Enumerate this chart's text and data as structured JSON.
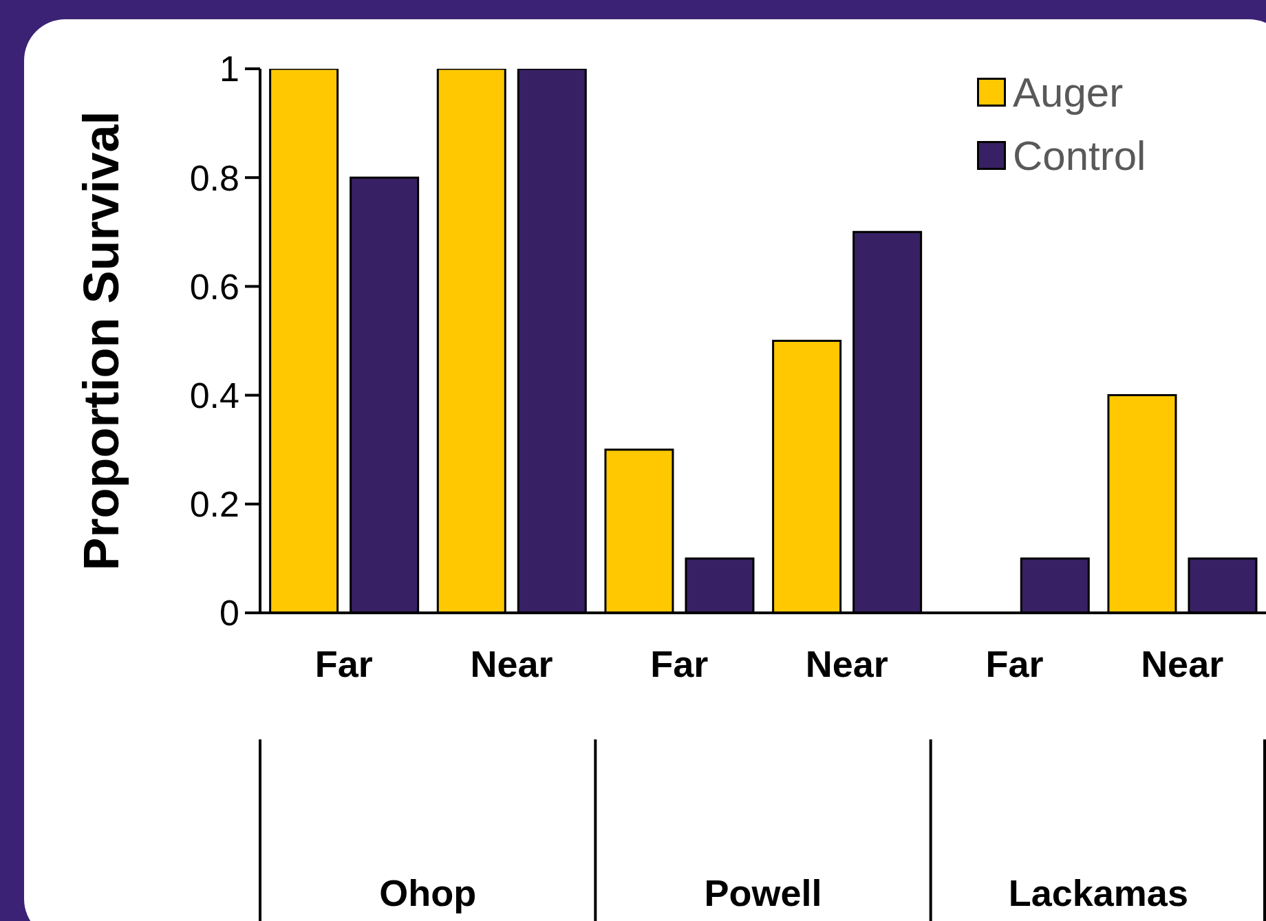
{
  "chart_data": {
    "type": "bar",
    "ylabel": "Proportion Survival",
    "categories": [
      "Far",
      "Near",
      "Far",
      "Near",
      "Far",
      "Near"
    ],
    "series": [
      {
        "name": "Auger",
        "color": "#ffc800",
        "values": [
          1,
          1,
          0.3,
          0.5,
          0,
          0.4
        ]
      },
      {
        "name": "Control",
        "color": "#372063",
        "values": [
          0.8,
          1,
          0.1,
          0.7,
          0.1,
          0.1
        ]
      }
    ],
    "annotations": [
      "Ohop",
      "Powell",
      "Lackamas"
    ],
    "ylim": [
      0,
      1
    ],
    "yticks": [
      0,
      0.2,
      0.4,
      0.6,
      0.8,
      1
    ],
    "legend": "top right"
  }
}
